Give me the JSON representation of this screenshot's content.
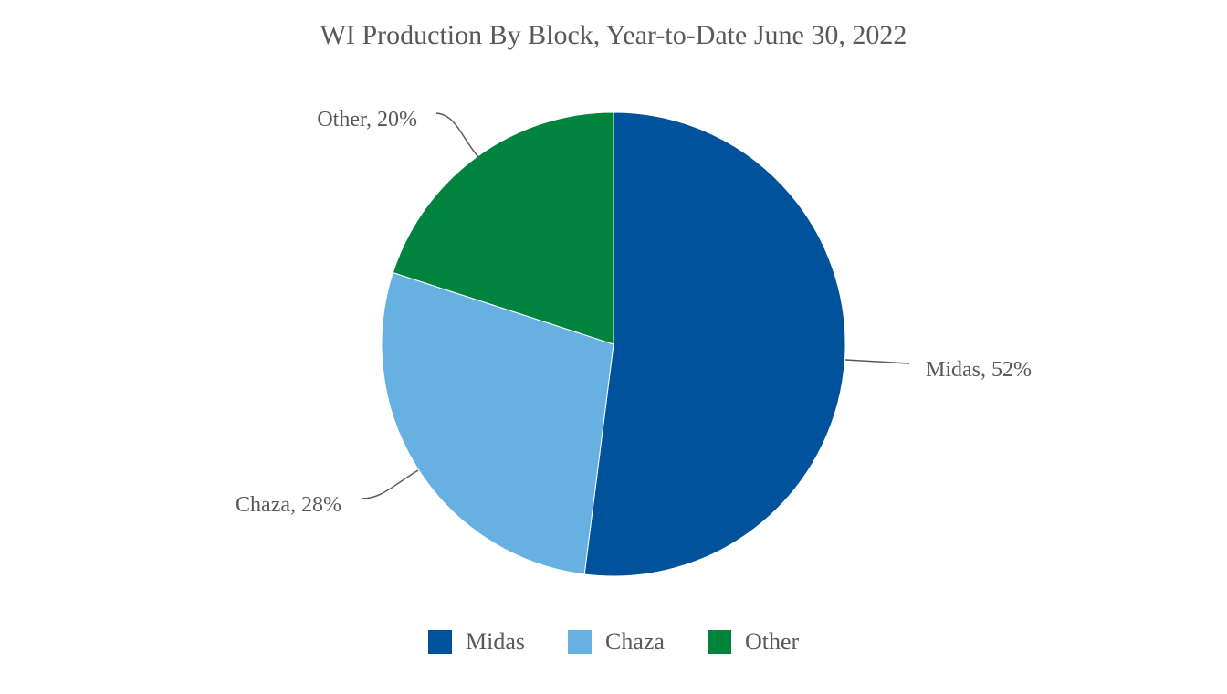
{
  "chart_data": {
    "type": "pie",
    "title": "WI Production By Block, Year-to-Date June 30, 2022",
    "slices": [
      {
        "name": "Midas",
        "value": 52,
        "label": "Midas, 52%",
        "color": "#00529B"
      },
      {
        "name": "Chaza",
        "value": 28,
        "label": "Chaza, 28%",
        "color": "#66B0E2"
      },
      {
        "name": "Other",
        "value": 20,
        "label": "Other, 20%",
        "color": "#00843D"
      }
    ],
    "legend": {
      "placement": "bottom",
      "entries": [
        "Midas",
        "Chaza",
        "Other"
      ]
    },
    "data_label_format": "category, percent"
  }
}
